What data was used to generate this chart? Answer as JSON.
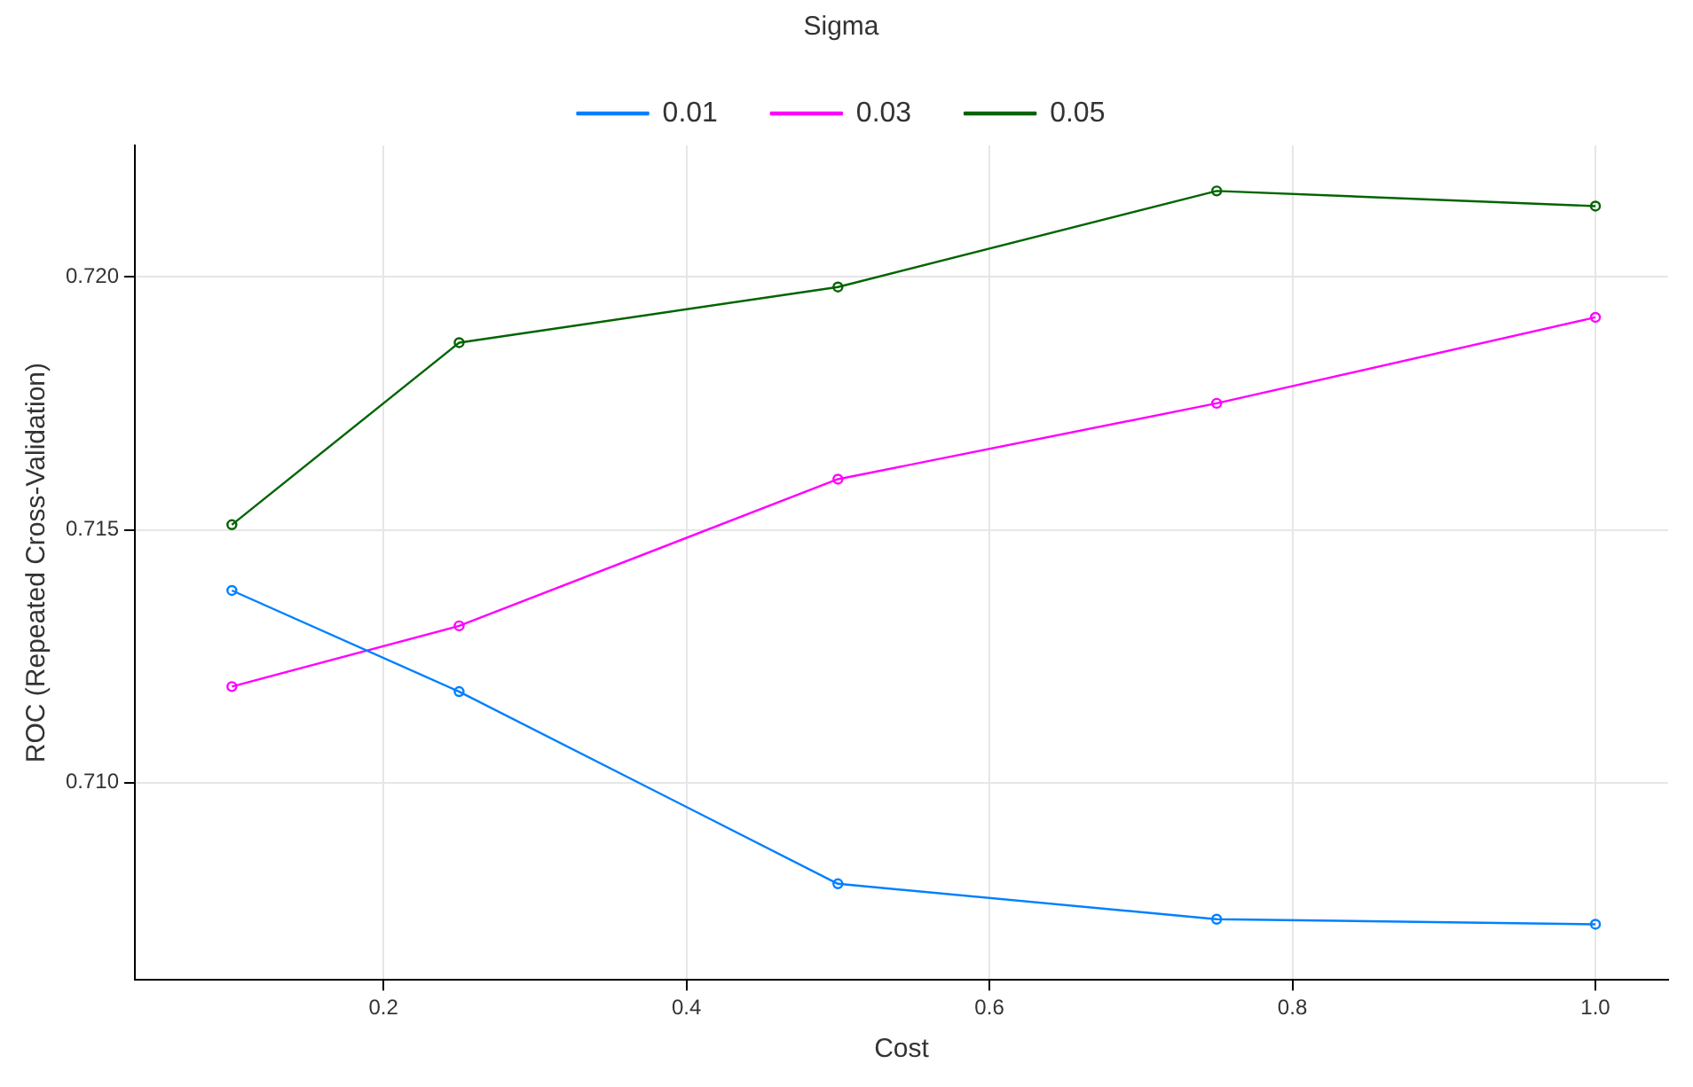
{
  "chart_data": {
    "type": "line",
    "xlabel": "Cost",
    "ylabel": "ROC (Repeated Cross-Validation)",
    "legend_title": "Sigma",
    "legend": "top",
    "grid": true,
    "marker": "circle",
    "line_style": "solid",
    "x": [
      0.1,
      0.25,
      0.5,
      0.75,
      1.0
    ],
    "xlim": [
      0.036,
      1.048
    ],
    "xticks": [
      0.2,
      0.4,
      0.6,
      0.8,
      {
        "value": 1,
        "label": "1.0"
      }
    ],
    "ylim": [
      0.7061,
      0.7226
    ],
    "yticks": [
      {
        "value": 0.71,
        "label": "0.710"
      },
      0.715,
      {
        "value": 0.72,
        "label": "0.720"
      }
    ],
    "series": [
      {
        "name": "0.01",
        "color": "#0080ff",
        "values": [
          0.7138,
          0.7118,
          0.708,
          0.7073,
          0.7072
        ]
      },
      {
        "name": "0.03",
        "color": "#ff00ff",
        "values": [
          0.7119,
          0.7131,
          0.716,
          0.7175,
          0.7192
        ]
      },
      {
        "name": "0.05",
        "color": "#006400",
        "values": [
          0.7151,
          0.7187,
          0.7198,
          0.7217,
          0.7214
        ]
      }
    ]
  }
}
